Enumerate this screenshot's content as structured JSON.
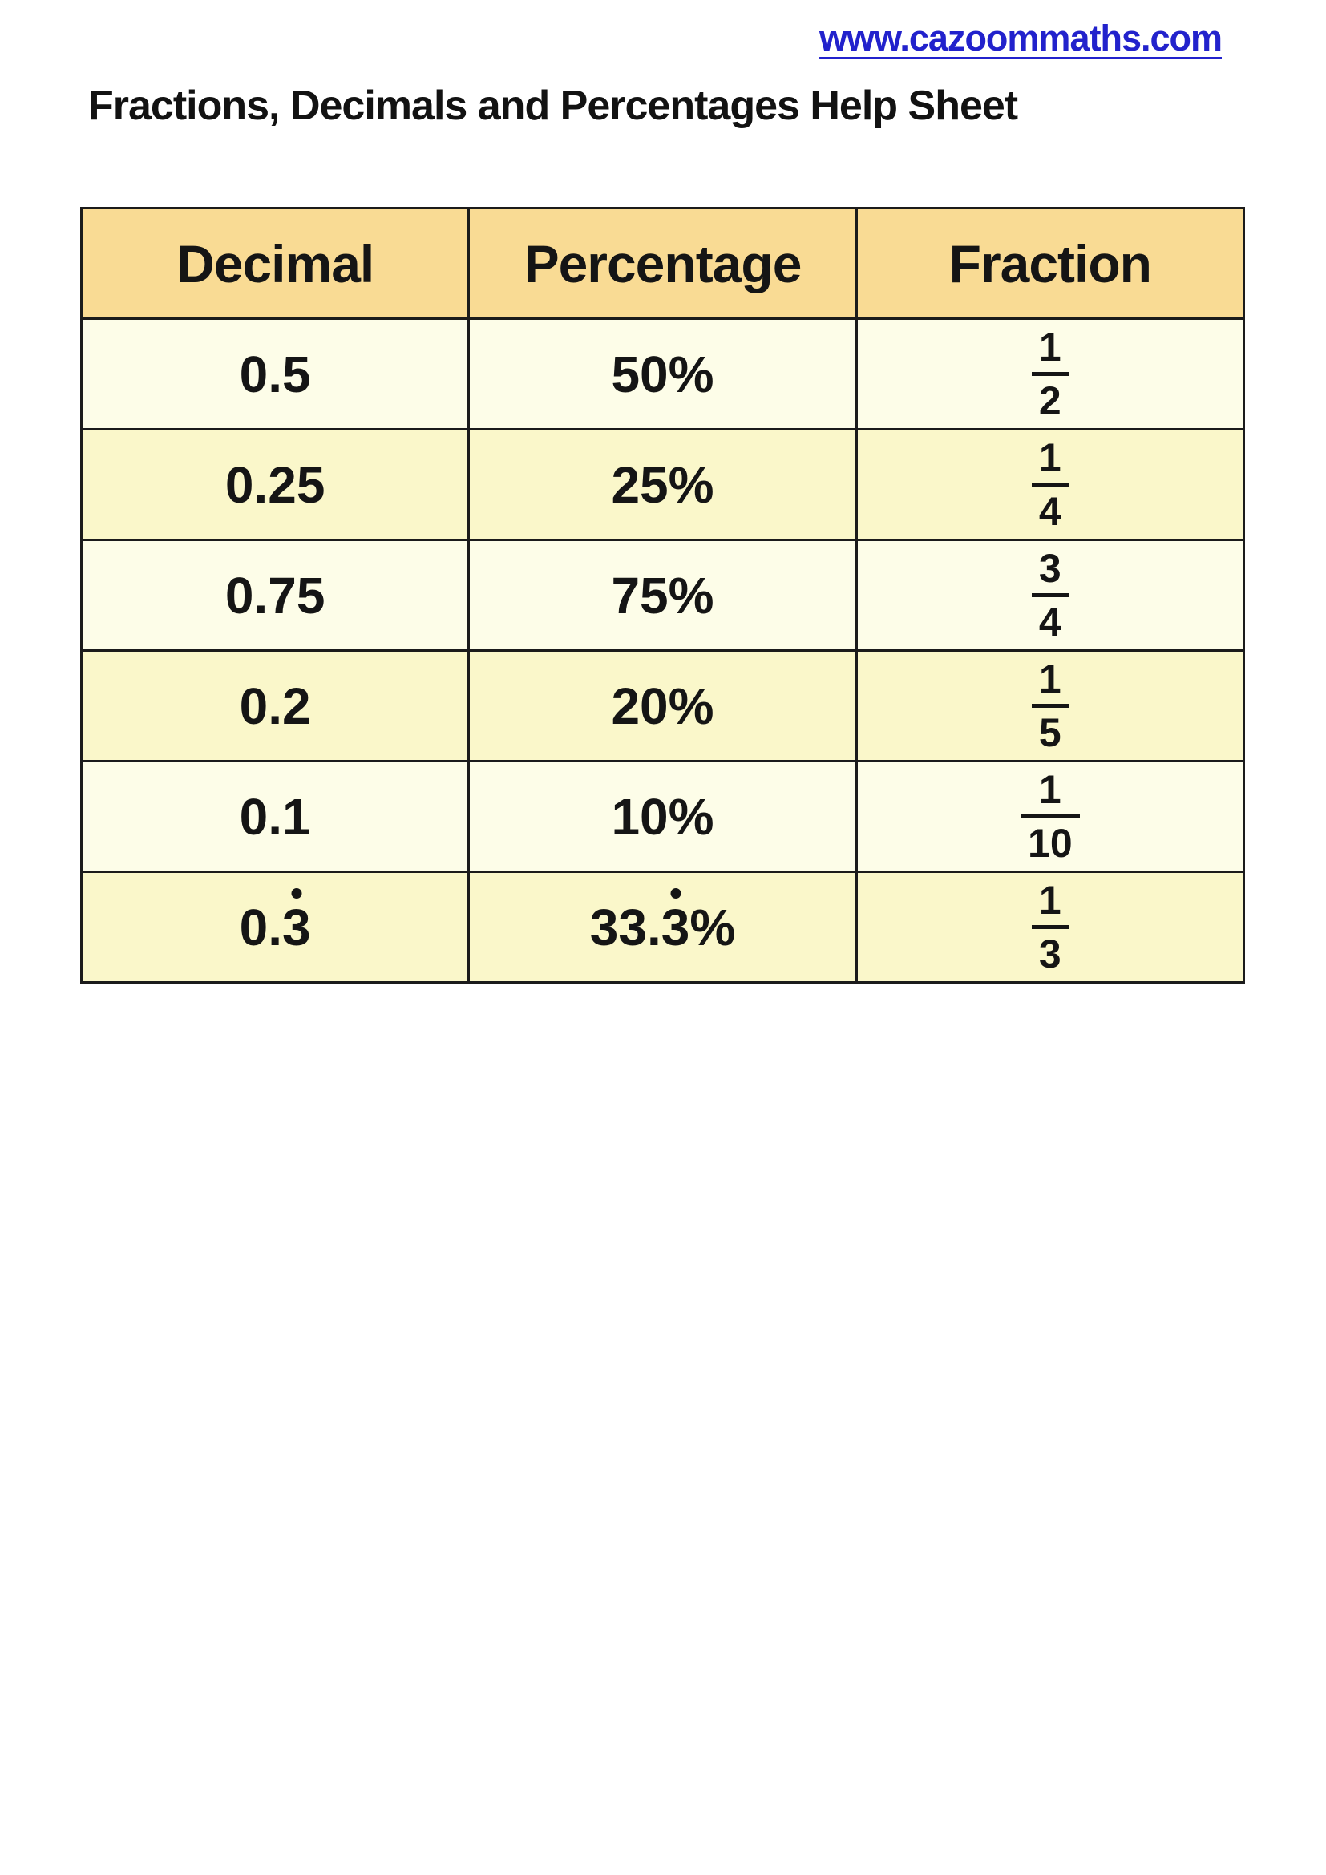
{
  "header": {
    "url": "www.cazoommaths.com",
    "title": "Fractions, Decimals and Percentages Help Sheet"
  },
  "colors": {
    "link_blue": "#2222CC",
    "table_header_bg": "#F9DB94",
    "row_cream_bg": "#FDFDE8",
    "row_yellow_bg": "#FAF7CA",
    "border": "#1b1b1b",
    "text": "#151515"
  },
  "table": {
    "column_headers": [
      "Decimal",
      "Percentage",
      "Fraction"
    ],
    "rows": [
      {
        "decimal": {
          "prefix": "0.5",
          "recurring": ""
        },
        "percentage": {
          "prefix": "50",
          "recurring": "",
          "suffix": "%"
        },
        "fraction": {
          "numerator": "1",
          "denominator": "2"
        }
      },
      {
        "decimal": {
          "prefix": "0.25",
          "recurring": ""
        },
        "percentage": {
          "prefix": "25",
          "recurring": "",
          "suffix": "%"
        },
        "fraction": {
          "numerator": "1",
          "denominator": "4"
        }
      },
      {
        "decimal": {
          "prefix": "0.75",
          "recurring": ""
        },
        "percentage": {
          "prefix": "75",
          "recurring": "",
          "suffix": "%"
        },
        "fraction": {
          "numerator": "3",
          "denominator": "4"
        }
      },
      {
        "decimal": {
          "prefix": "0.2",
          "recurring": ""
        },
        "percentage": {
          "prefix": "20",
          "recurring": "",
          "suffix": "%"
        },
        "fraction": {
          "numerator": "1",
          "denominator": "5"
        }
      },
      {
        "decimal": {
          "prefix": "0.1",
          "recurring": ""
        },
        "percentage": {
          "prefix": "10",
          "recurring": "",
          "suffix": "%"
        },
        "fraction": {
          "numerator": "1",
          "denominator": "10"
        }
      },
      {
        "decimal": {
          "prefix": "0.",
          "recurring": "3"
        },
        "percentage": {
          "prefix": "33.",
          "recurring": "3",
          "suffix": "%"
        },
        "fraction": {
          "numerator": "1",
          "denominator": "3"
        }
      }
    ]
  }
}
